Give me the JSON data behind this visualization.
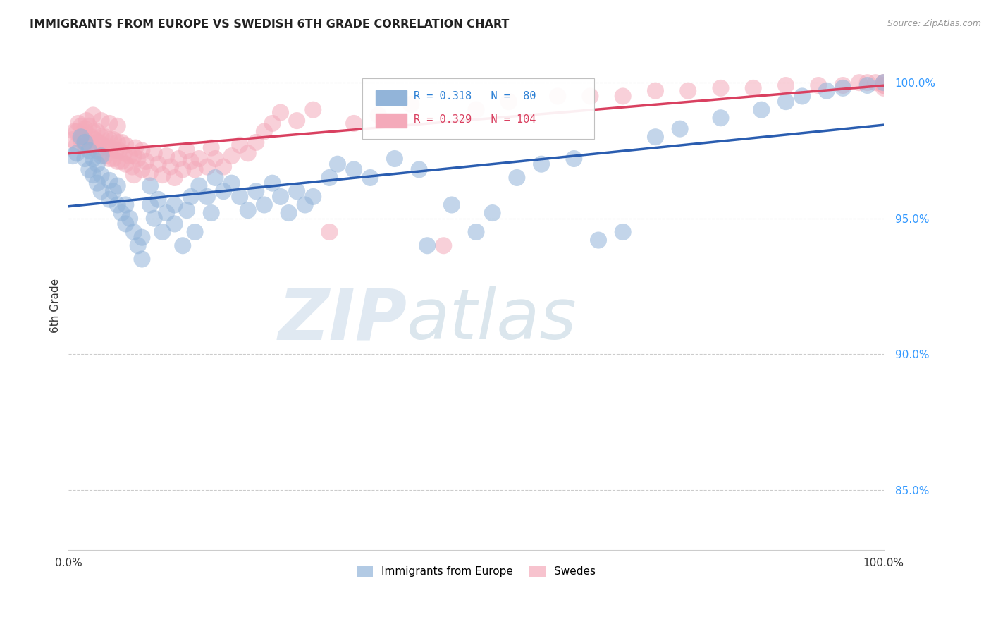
{
  "title": "IMMIGRANTS FROM EUROPE VS SWEDISH 6TH GRADE CORRELATION CHART",
  "source": "Source: ZipAtlas.com",
  "ylabel": "6th Grade",
  "legend_blue_label": "Immigrants from Europe",
  "legend_pink_label": "Swedes",
  "r_blue": 0.318,
  "n_blue": 80,
  "r_pink": 0.329,
  "n_pink": 104,
  "blue_color": "#92b4d9",
  "pink_color": "#f4aaba",
  "line_blue_color": "#2a5db0",
  "line_pink_color": "#d94060",
  "blue_x": [
    0.005,
    0.01,
    0.015,
    0.02,
    0.02,
    0.025,
    0.025,
    0.03,
    0.03,
    0.035,
    0.035,
    0.04,
    0.04,
    0.04,
    0.05,
    0.05,
    0.055,
    0.06,
    0.06,
    0.065,
    0.07,
    0.07,
    0.075,
    0.08,
    0.085,
    0.09,
    0.09,
    0.1,
    0.1,
    0.105,
    0.11,
    0.115,
    0.12,
    0.13,
    0.13,
    0.14,
    0.145,
    0.15,
    0.155,
    0.16,
    0.17,
    0.175,
    0.18,
    0.19,
    0.2,
    0.21,
    0.22,
    0.23,
    0.24,
    0.25,
    0.26,
    0.27,
    0.28,
    0.29,
    0.3,
    0.32,
    0.33,
    0.35,
    0.37,
    0.4,
    0.43,
    0.44,
    0.47,
    0.5,
    0.52,
    0.55,
    0.58,
    0.62,
    0.65,
    0.68,
    0.72,
    0.75,
    0.8,
    0.85,
    0.88,
    0.9,
    0.93,
    0.95,
    0.98,
    1.0
  ],
  "blue_y": [
    0.973,
    0.974,
    0.98,
    0.972,
    0.978,
    0.968,
    0.975,
    0.966,
    0.972,
    0.963,
    0.97,
    0.96,
    0.966,
    0.973,
    0.957,
    0.964,
    0.96,
    0.955,
    0.962,
    0.952,
    0.948,
    0.955,
    0.95,
    0.945,
    0.94,
    0.935,
    0.943,
    0.955,
    0.962,
    0.95,
    0.957,
    0.945,
    0.952,
    0.948,
    0.955,
    0.94,
    0.953,
    0.958,
    0.945,
    0.962,
    0.958,
    0.952,
    0.965,
    0.96,
    0.963,
    0.958,
    0.953,
    0.96,
    0.955,
    0.963,
    0.958,
    0.952,
    0.96,
    0.955,
    0.958,
    0.965,
    0.97,
    0.968,
    0.965,
    0.972,
    0.968,
    0.94,
    0.955,
    0.945,
    0.952,
    0.965,
    0.97,
    0.972,
    0.942,
    0.945,
    0.98,
    0.983,
    0.987,
    0.99,
    0.993,
    0.995,
    0.997,
    0.998,
    0.999,
    1.0
  ],
  "pink_x": [
    0.005,
    0.007,
    0.01,
    0.01,
    0.012,
    0.015,
    0.015,
    0.018,
    0.02,
    0.02,
    0.022,
    0.025,
    0.025,
    0.028,
    0.03,
    0.03,
    0.03,
    0.032,
    0.035,
    0.035,
    0.038,
    0.04,
    0.04,
    0.04,
    0.042,
    0.045,
    0.045,
    0.048,
    0.05,
    0.05,
    0.05,
    0.052,
    0.055,
    0.055,
    0.058,
    0.06,
    0.06,
    0.06,
    0.062,
    0.065,
    0.065,
    0.068,
    0.07,
    0.07,
    0.075,
    0.078,
    0.08,
    0.08,
    0.082,
    0.085,
    0.09,
    0.09,
    0.095,
    0.1,
    0.105,
    0.11,
    0.115,
    0.12,
    0.125,
    0.13,
    0.135,
    0.14,
    0.145,
    0.15,
    0.155,
    0.16,
    0.17,
    0.175,
    0.18,
    0.19,
    0.2,
    0.21,
    0.22,
    0.23,
    0.24,
    0.25,
    0.26,
    0.28,
    0.3,
    0.32,
    0.35,
    0.38,
    0.42,
    0.46,
    0.5,
    0.54,
    0.6,
    0.64,
    0.68,
    0.72,
    0.76,
    0.8,
    0.84,
    0.88,
    0.92,
    0.95,
    0.97,
    0.98,
    0.99,
    1.0,
    1.0,
    1.0,
    1.0,
    1.0
  ],
  "pink_y": [
    0.979,
    0.982,
    0.977,
    0.982,
    0.985,
    0.979,
    0.984,
    0.98,
    0.977,
    0.983,
    0.986,
    0.978,
    0.984,
    0.98,
    0.976,
    0.982,
    0.988,
    0.979,
    0.975,
    0.982,
    0.978,
    0.974,
    0.98,
    0.986,
    0.977,
    0.973,
    0.98,
    0.976,
    0.972,
    0.979,
    0.985,
    0.976,
    0.972,
    0.979,
    0.975,
    0.971,
    0.978,
    0.984,
    0.975,
    0.971,
    0.978,
    0.974,
    0.97,
    0.977,
    0.973,
    0.969,
    0.966,
    0.973,
    0.976,
    0.972,
    0.968,
    0.975,
    0.971,
    0.967,
    0.974,
    0.97,
    0.966,
    0.973,
    0.969,
    0.965,
    0.972,
    0.968,
    0.975,
    0.971,
    0.968,
    0.972,
    0.969,
    0.976,
    0.972,
    0.969,
    0.973,
    0.977,
    0.974,
    0.978,
    0.982,
    0.985,
    0.989,
    0.986,
    0.99,
    0.945,
    0.985,
    0.988,
    0.992,
    0.94,
    0.99,
    0.993,
    0.995,
    0.995,
    0.995,
    0.997,
    0.997,
    0.998,
    0.998,
    0.999,
    0.999,
    0.999,
    1.0,
    1.0,
    1.0,
    1.0,
    0.999,
    0.998,
    0.999,
    1.0
  ],
  "xlim": [
    0.0,
    1.0
  ],
  "ylim": [
    0.828,
    1.008
  ],
  "ytick_values": [
    0.85,
    0.9,
    0.95,
    1.0
  ],
  "ytick_labels": [
    "85.0%",
    "90.0%",
    "95.0%",
    "100.0%"
  ],
  "xtick_values": [
    0.0,
    1.0
  ],
  "xtick_labels": [
    "0.0%",
    "100.0%"
  ],
  "watermark_zip": "ZIP",
  "watermark_atlas": "atlas",
  "background_color": "#ffffff"
}
